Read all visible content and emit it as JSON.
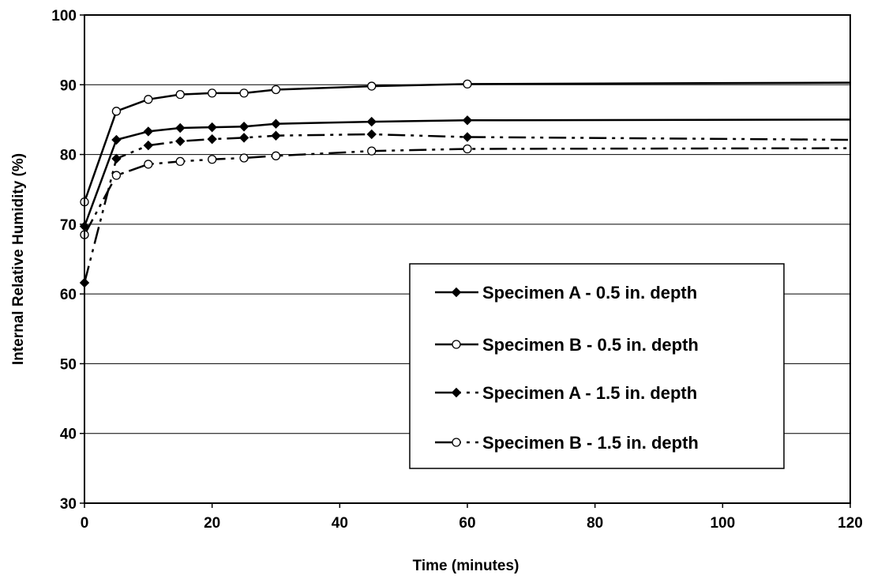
{
  "chart_data": {
    "type": "line",
    "xlabel": "Time (minutes)",
    "ylabel": "Internal Relative Humidity (%)",
    "xlim": [
      0,
      120
    ],
    "ylim": [
      30,
      100
    ],
    "xticks": [
      "0",
      "20",
      "40",
      "60",
      "80",
      "100",
      "120"
    ],
    "yticks": [
      "30",
      "40",
      "50",
      "60",
      "70",
      "80",
      "90",
      "100"
    ],
    "grid": "horizontal",
    "legend_position": "lower-right",
    "series": [
      {
        "name": "Specimen A - 0.5 in. depth",
        "marker": "filled-diamond",
        "line": "solid",
        "color": "#000000",
        "points": [
          [
            0,
            69.7
          ],
          [
            5,
            82.1
          ],
          [
            10,
            83.3
          ],
          [
            15,
            83.8
          ],
          [
            20,
            83.9
          ],
          [
            25,
            84.0
          ],
          [
            30,
            84.4
          ],
          [
            45,
            84.7
          ],
          [
            60,
            84.9
          ],
          [
            120,
            85.0
          ]
        ],
        "marker_x": [
          0,
          5,
          10,
          15,
          20,
          25,
          30,
          45,
          60
        ]
      },
      {
        "name": "Specimen B - 0.5 in. depth",
        "marker": "open-circle",
        "line": "solid",
        "color": "#000000",
        "points": [
          [
            0,
            73.2
          ],
          [
            5,
            86.2
          ],
          [
            10,
            87.9
          ],
          [
            15,
            88.6
          ],
          [
            20,
            88.8
          ],
          [
            25,
            88.8
          ],
          [
            30,
            89.3
          ],
          [
            45,
            89.8
          ],
          [
            60,
            90.1
          ],
          [
            120,
            90.3
          ]
        ],
        "marker_x": [
          0,
          5,
          10,
          15,
          20,
          25,
          30,
          45,
          60
        ]
      },
      {
        "name": "Specimen A - 1.5 in. depth",
        "marker": "filled-diamond",
        "line": "dash-dot-dot",
        "color": "#000000",
        "points": [
          [
            0,
            61.6
          ],
          [
            5,
            79.4
          ],
          [
            10,
            81.3
          ],
          [
            15,
            81.9
          ],
          [
            20,
            82.2
          ],
          [
            25,
            82.4
          ],
          [
            30,
            82.7
          ],
          [
            45,
            82.9
          ],
          [
            60,
            82.5
          ],
          [
            120,
            82.1
          ]
        ],
        "marker_x": [
          0,
          5,
          10,
          15,
          20,
          25,
          30,
          45,
          60
        ]
      },
      {
        "name": "Specimen B - 1.5 in. depth",
        "marker": "open-circle",
        "line": "dash-dot-dot",
        "color": "#000000",
        "points": [
          [
            0,
            68.5
          ],
          [
            5,
            77.0
          ],
          [
            10,
            78.6
          ],
          [
            15,
            79.0
          ],
          [
            20,
            79.3
          ],
          [
            25,
            79.5
          ],
          [
            30,
            79.8
          ],
          [
            45,
            80.5
          ],
          [
            60,
            80.8
          ],
          [
            120,
            80.9
          ]
        ],
        "marker_x": [
          0,
          5,
          10,
          15,
          20,
          25,
          30,
          45,
          60
        ]
      }
    ]
  }
}
